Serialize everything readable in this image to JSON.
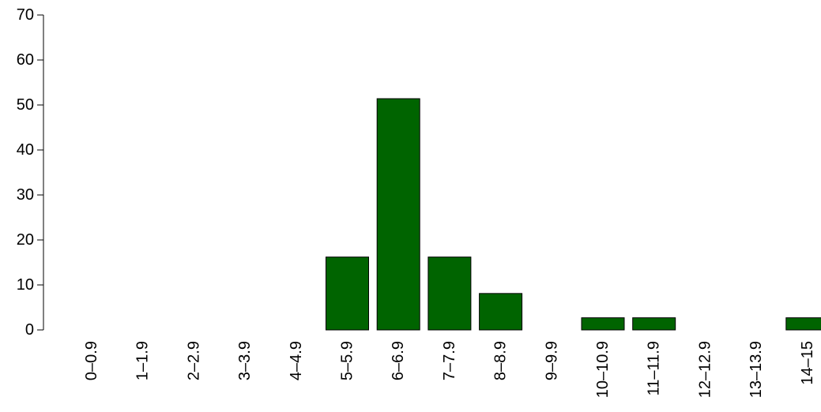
{
  "chart_data": {
    "type": "bar",
    "categories": [
      "0–0.9",
      "1–1.9",
      "2–2.9",
      "3–3.9",
      "4–4.9",
      "5–5.9",
      "6–6.9",
      "7–7.9",
      "8–8.9",
      "9–9.9",
      "10–10.9",
      "11–11.9",
      "12–12.9",
      "13–13.9",
      "14–15"
    ],
    "values": [
      0,
      0,
      0,
      0,
      0,
      16.2,
      51.4,
      16.2,
      8.1,
      0,
      2.7,
      2.7,
      0,
      0,
      2.7
    ],
    "title": "",
    "xlabel": "",
    "ylabel": "",
    "ylim": [
      0,
      70
    ],
    "yticks": [
      0,
      10,
      20,
      30,
      40,
      50,
      60,
      70
    ],
    "ytick_labels": [
      "0",
      "10",
      "20",
      "30",
      "40",
      "50",
      "60",
      "70"
    ],
    "grid": false,
    "bar_color": "#006400",
    "bar_edge_color": "#000000"
  }
}
